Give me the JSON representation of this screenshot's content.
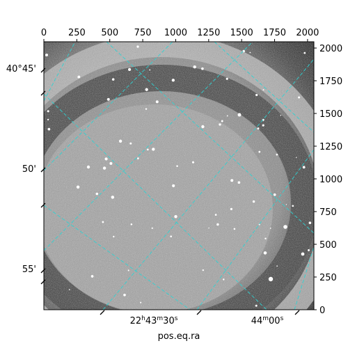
{
  "chart_data": {
    "type": "image",
    "projection": "astronomical sky image with equatorial coordinate grid",
    "colormap": "grayscale",
    "grid": true,
    "grid_color": "#2fd3d3",
    "pixel_axes": {
      "x_range": [
        0,
        2048
      ],
      "y_range": [
        0,
        2048
      ],
      "x_ticks": [
        0,
        250,
        500,
        750,
        1000,
        1250,
        1500,
        1750,
        2000
      ],
      "y_ticks": [
        0,
        250,
        500,
        750,
        1000,
        1250,
        1500,
        1750,
        2000
      ],
      "x_tick_labels": [
        "0",
        "250",
        "500",
        "750",
        "1000",
        "1250",
        "1500",
        "1750",
        "2000"
      ],
      "y_tick_labels": [
        "0",
        "250",
        "500",
        "750",
        "1000",
        "1250",
        "1500",
        "1750",
        "2000"
      ]
    },
    "world_axes": {
      "xlabel": "pos.eq.ra",
      "ra_ticks": [
        {
          "label_base": "22",
          "label_h": "h",
          "label_min": "43",
          "label_m": "m",
          "label_sec": "30",
          "label_s": "s"
        },
        {
          "label_base": "44",
          "label_m": "m",
          "label_sec": "00",
          "label_s": "s"
        }
      ],
      "dec_ticks": [
        {
          "label": "40°45'"
        },
        {
          "label": "50'"
        },
        {
          "label": "55'"
        }
      ]
    },
    "image_features": {
      "halo_ring": "bright circular stray-light ring with dark outer band",
      "star_count_estimate": 80
    }
  }
}
